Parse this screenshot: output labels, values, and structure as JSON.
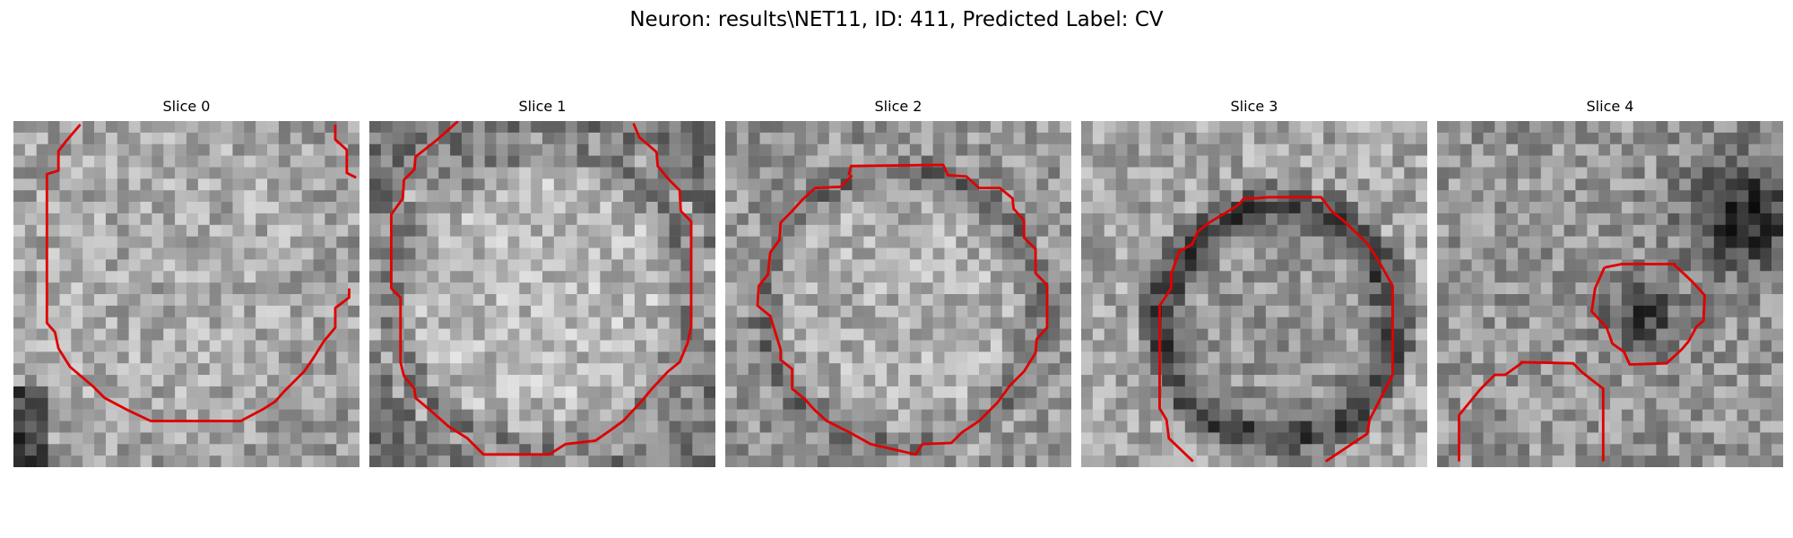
{
  "figure": {
    "title": "Neuron: results\\NET11, ID: 411, Predicted Label: CV"
  },
  "colors": {
    "background": "#ffffff",
    "contour": "#e00000",
    "colormap": "gray"
  },
  "slices": [
    {
      "title": "Slice 0",
      "image": "grayscale-microscopy-patch",
      "overlay": "red-contour"
    },
    {
      "title": "Slice 1",
      "image": "grayscale-microscopy-patch",
      "overlay": "red-contour"
    },
    {
      "title": "Slice 2",
      "image": "grayscale-microscopy-patch",
      "overlay": "red-contour"
    },
    {
      "title": "Slice 3",
      "image": "grayscale-microscopy-patch",
      "overlay": "red-contour"
    },
    {
      "title": "Slice 4",
      "image": "grayscale-microscopy-patch",
      "overlay": "red-contour"
    }
  ]
}
